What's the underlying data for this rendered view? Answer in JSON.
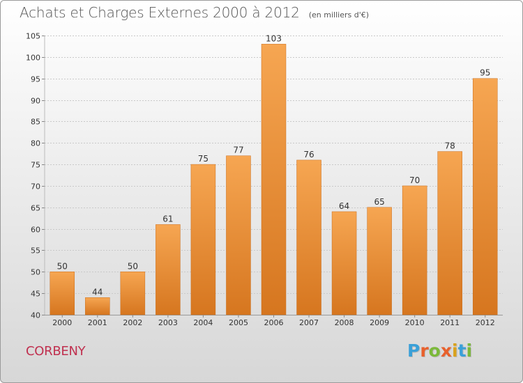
{
  "chart_data": {
    "type": "bar",
    "title": "Achats et Charges Externes 2000 à 2012",
    "subtitle": "(en milliers d'€)",
    "categories": [
      "2000",
      "2001",
      "2002",
      "2003",
      "2004",
      "2005",
      "2006",
      "2007",
      "2008",
      "2009",
      "2010",
      "2011",
      "2012"
    ],
    "values": [
      50,
      44,
      50,
      61,
      75,
      77,
      103,
      76,
      64,
      65,
      70,
      78,
      95
    ],
    "ylim": [
      40,
      105
    ],
    "yticks": [
      40,
      45,
      50,
      55,
      60,
      65,
      70,
      75,
      80,
      85,
      90,
      95,
      100,
      105
    ],
    "grid": true,
    "bar_color": "#f0a04a"
  },
  "footer": {
    "commune": "CORBENY",
    "brand": "Proxiti",
    "brand_colors": [
      "#3aa0d8",
      "#e8602c",
      "#7bb93a",
      "#e8602c",
      "#d9a21c",
      "#3aa0d8",
      "#7bb93a"
    ]
  }
}
